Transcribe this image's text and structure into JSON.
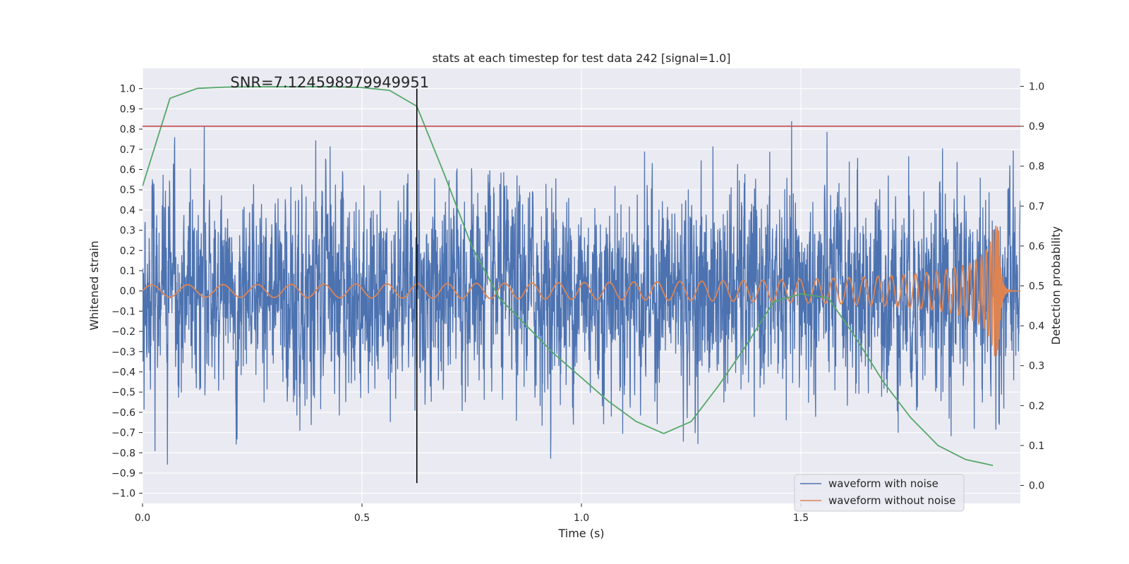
{
  "chart_data": {
    "type": "line",
    "title": "stats at each timestep for test data 242 [signal=1.0]",
    "xlabel": "Time (s)",
    "ylabel": "Whitened strain",
    "y2label": "Detection probability",
    "xlim": [
      0.0,
      2.0
    ],
    "ylim": [
      -1.05,
      1.1
    ],
    "y2lim": [
      -0.045,
      1.045
    ],
    "xticks": [
      "0.0",
      "0.5",
      "1.0",
      "1.5"
    ],
    "yticks": [
      "1.0",
      "0.9",
      "0.8",
      "0.7",
      "0.6",
      "0.5",
      "0.4",
      "0.3",
      "0.2",
      "0.1",
      "0.0",
      "−0.1",
      "−0.2",
      "−0.3",
      "−0.4",
      "−0.5",
      "−0.6",
      "−0.7",
      "−0.8",
      "−0.9",
      "−1.0"
    ],
    "y2ticks": [
      "1.0",
      "0.9",
      "0.8",
      "0.7",
      "0.6",
      "0.5",
      "0.4",
      "0.3",
      "0.2",
      "0.1",
      "0.0"
    ],
    "annotation": "SNR=7.124598979949951",
    "annotation_x": 0.2,
    "threshold_y": 0.9,
    "marker_time": 0.625,
    "marker_range": [
      -0.95,
      1.0
    ],
    "grid": true,
    "legend_position": "bottom-right",
    "noise_seed": 242,
    "series": [
      {
        "name": "waveform with noise",
        "color": "#4c72b0",
        "axis": "left",
        "kind": "noise",
        "duration": 2.0,
        "amplitude_range": [
          -0.95,
          1.0
        ]
      },
      {
        "name": "waveform without noise",
        "color": "#dd8452",
        "axis": "left",
        "kind": "chirp",
        "duration": 2.0,
        "merger_time": 1.95
      },
      {
        "name": "",
        "color": "#55a868",
        "axis": "right",
        "kind": "line",
        "x": [
          0.0,
          0.0625,
          0.125,
          0.1875,
          0.25,
          0.3125,
          0.375,
          0.4375,
          0.5,
          0.5625,
          0.625,
          0.6875,
          0.75,
          0.8125,
          0.875,
          0.9375,
          1.0,
          1.0625,
          1.125,
          1.1875,
          1.25,
          1.3125,
          1.375,
          1.4375,
          1.5,
          1.5625,
          1.625,
          1.6875,
          1.75,
          1.8125,
          1.875,
          1.9375
        ],
        "y": [
          0.75,
          0.97,
          0.995,
          0.998,
          0.999,
          0.999,
          0.999,
          0.999,
          0.997,
          0.99,
          0.95,
          0.78,
          0.6,
          0.47,
          0.4,
          0.33,
          0.27,
          0.21,
          0.16,
          0.13,
          0.16,
          0.25,
          0.35,
          0.46,
          0.48,
          0.47,
          0.37,
          0.26,
          0.17,
          0.1,
          0.065,
          0.05
        ]
      }
    ]
  }
}
